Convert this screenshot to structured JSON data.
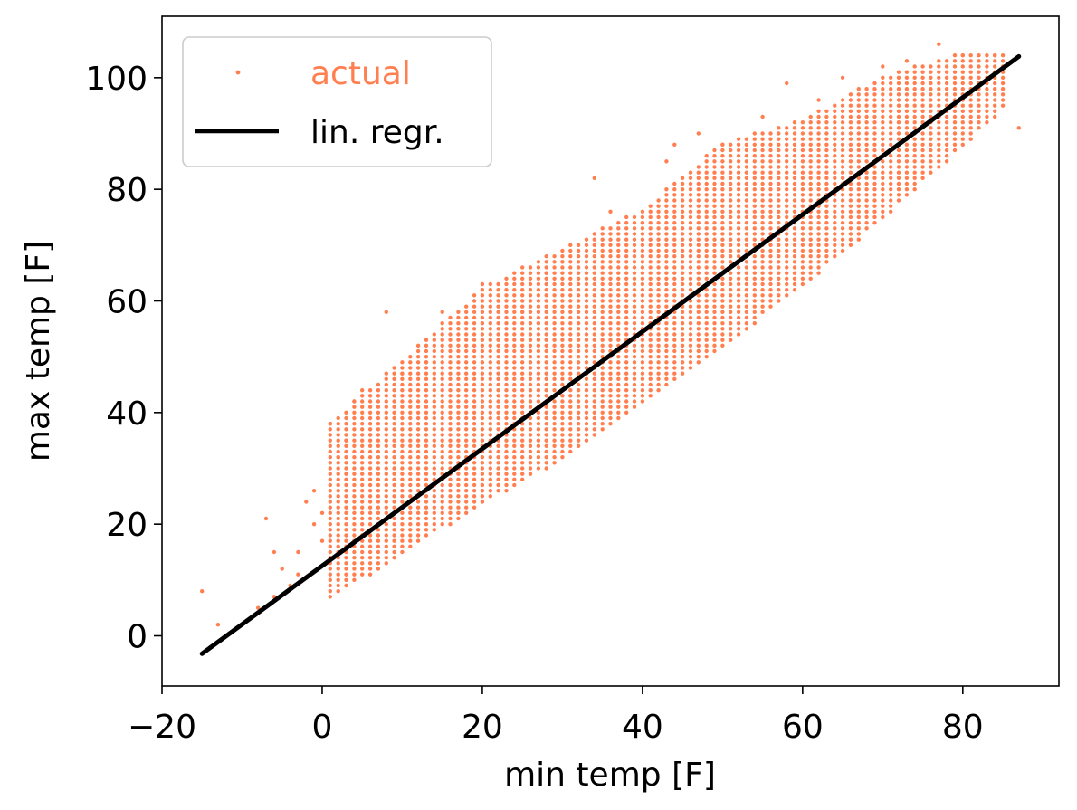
{
  "chart_data": {
    "type": "scatter",
    "title": "",
    "xlabel": "min temp [F]",
    "ylabel": "max temp [F]",
    "xlim": [
      -20,
      92
    ],
    "ylim": [
      -9,
      111
    ],
    "xticks": [
      -20,
      0,
      20,
      40,
      60,
      80
    ],
    "xtick_labels": [
      "−20",
      "0",
      "20",
      "40",
      "60",
      "80"
    ],
    "yticks": [
      0,
      20,
      40,
      60,
      80,
      100
    ],
    "ytick_labels": [
      "0",
      "20",
      "40",
      "60",
      "80",
      "100"
    ],
    "grid": false,
    "legend": {
      "placement": "top-left",
      "entries": [
        {
          "label": "actual",
          "color": "#ff7f50",
          "marker": "dot"
        },
        {
          "label": "lin. regr.",
          "color": "#000000",
          "marker": "line"
        }
      ]
    },
    "series": [
      {
        "name": "actual",
        "kind": "scatter",
        "color": "#ff7f50",
        "envelope": {
          "x_min": 1,
          "x_max": 85,
          "lower": [
            [
              1,
              7
            ],
            [
              10,
              15
            ],
            [
              20,
              24
            ],
            [
              30,
              32
            ],
            [
              40,
              42
            ],
            [
              50,
              52
            ],
            [
              60,
              63
            ],
            [
              70,
              75
            ],
            [
              80,
              88
            ],
            [
              85,
              95
            ]
          ],
          "upper": [
            [
              1,
              38
            ],
            [
              10,
              49
            ],
            [
              20,
              62
            ],
            [
              30,
              69
            ],
            [
              40,
              76
            ],
            [
              50,
              88
            ],
            [
              60,
              92
            ],
            [
              70,
              100
            ],
            [
              80,
              104
            ],
            [
              85,
              104
            ]
          ]
        },
        "points": [
          [
            -15,
            8
          ],
          [
            -13,
            2
          ],
          [
            -8,
            5
          ],
          [
            -7,
            21
          ],
          [
            -6,
            7
          ],
          [
            -6,
            15
          ],
          [
            -5,
            12
          ],
          [
            -4,
            9
          ],
          [
            -3,
            15
          ],
          [
            -3,
            11
          ],
          [
            -2,
            24
          ],
          [
            -1,
            26
          ],
          [
            -1,
            20
          ],
          [
            0,
            17
          ],
          [
            0,
            22
          ],
          [
            1,
            38
          ],
          [
            2,
            32
          ],
          [
            3,
            35
          ],
          [
            4,
            42
          ],
          [
            5,
            44
          ],
          [
            6,
            36
          ],
          [
            8,
            58
          ],
          [
            10,
            47
          ],
          [
            13,
            49
          ],
          [
            15,
            58
          ],
          [
            17,
            55
          ],
          [
            20,
            63
          ],
          [
            22,
            60
          ],
          [
            25,
            58
          ],
          [
            28,
            65
          ],
          [
            30,
            67
          ],
          [
            34,
            82
          ],
          [
            36,
            76
          ],
          [
            40,
            74
          ],
          [
            43,
            85
          ],
          [
            44,
            88
          ],
          [
            47,
            90
          ],
          [
            50,
            88
          ],
          [
            55,
            93
          ],
          [
            58,
            99
          ],
          [
            62,
            96
          ],
          [
            65,
            100
          ],
          [
            70,
            102
          ],
          [
            73,
            103
          ],
          [
            77,
            106
          ],
          [
            80,
            104
          ],
          [
            84,
            104
          ],
          [
            84,
            93
          ],
          [
            87,
            91
          ]
        ]
      },
      {
        "name": "lin. regr.",
        "kind": "line",
        "color": "#000000",
        "x": [
          -15,
          87
        ],
        "y": [
          -3.2,
          103.8
        ]
      }
    ]
  }
}
